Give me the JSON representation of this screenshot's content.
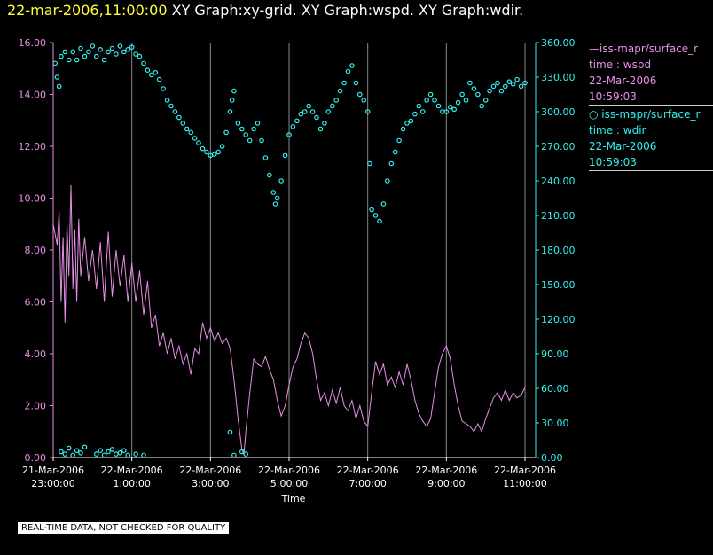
{
  "title": {
    "timestamp": "22-mar-2006,11:00:00",
    "graphs": "XY Graph:xy-grid.  XY Graph:wspd.  XY Graph:wdir."
  },
  "legend": {
    "wspd": {
      "series": "iss-mapr/surface_r",
      "var": "time : wspd",
      "date": "22-Mar-2006",
      "time": "10:59:03"
    },
    "wdir": {
      "series": "iss-mapr/surface_r",
      "var": "time : wdir",
      "date": "22-Mar-2006",
      "time": "10:59:03"
    }
  },
  "disclaimer": "REAL-TIME DATA, NOT CHECKED FOR QUALITY",
  "colors": {
    "wspd": "#e88ee8",
    "wdir": "#33f0f0",
    "grid": "#888888",
    "axis": "#ffffff",
    "title_time": "#ffff33"
  },
  "chart_data": {
    "type": "line+scatter",
    "xlabel": "Time",
    "x_unit": "hours since 21-Mar-2006 23:00:00",
    "xlim": [
      0,
      12
    ],
    "x_ticks": [
      {
        "x": 0,
        "line1": "21-Mar-2006",
        "line2": "23:00:00"
      },
      {
        "x": 2,
        "line1": "22-Mar-2006",
        "line2": "1:00:00"
      },
      {
        "x": 4,
        "line1": "22-Mar-2006",
        "line2": "3:00:00"
      },
      {
        "x": 6,
        "line1": "22-Mar-2006",
        "line2": "5:00:00"
      },
      {
        "x": 8,
        "line1": "22-Mar-2006",
        "line2": "7:00:00"
      },
      {
        "x": 10,
        "line1": "22-Mar-2006",
        "line2": "9:00:00"
      },
      {
        "x": 12,
        "line1": "22-Mar-2006",
        "line2": "11:00:00"
      }
    ],
    "y_left": {
      "ylim": [
        0,
        16
      ],
      "ticks": [
        "0.00",
        "2.00",
        "4.00",
        "6.00",
        "8.00",
        "10.00",
        "12.00",
        "14.00",
        "16.00"
      ]
    },
    "y_right": {
      "ylim": [
        0,
        360
      ],
      "ticks": [
        "0.00",
        "30.00",
        "60.00",
        "90.00",
        "120.00",
        "150.00",
        "180.00",
        "210.00",
        "240.00",
        "270.00",
        "300.00",
        "330.00",
        "360.00"
      ]
    },
    "series": [
      {
        "name": "wspd",
        "axis": "left",
        "style": "line",
        "points": [
          [
            0,
            9.0
          ],
          [
            0.1,
            8.2
          ],
          [
            0.15,
            9.5
          ],
          [
            0.2,
            6.0
          ],
          [
            0.25,
            8.5
          ],
          [
            0.3,
            5.2
          ],
          [
            0.35,
            9.0
          ],
          [
            0.4,
            7.0
          ],
          [
            0.45,
            10.5
          ],
          [
            0.5,
            6.5
          ],
          [
            0.55,
            8.8
          ],
          [
            0.6,
            6.0
          ],
          [
            0.65,
            9.2
          ],
          [
            0.7,
            7.0
          ],
          [
            0.8,
            8.5
          ],
          [
            0.9,
            6.8
          ],
          [
            1.0,
            8.0
          ],
          [
            1.1,
            6.5
          ],
          [
            1.2,
            8.3
          ],
          [
            1.3,
            6.0
          ],
          [
            1.4,
            8.7
          ],
          [
            1.5,
            6.2
          ],
          [
            1.6,
            8.0
          ],
          [
            1.7,
            6.6
          ],
          [
            1.8,
            7.8
          ],
          [
            1.9,
            6.0
          ],
          [
            2.0,
            7.5
          ],
          [
            2.1,
            6.0
          ],
          [
            2.2,
            7.2
          ],
          [
            2.3,
            5.5
          ],
          [
            2.4,
            6.8
          ],
          [
            2.5,
            5.0
          ],
          [
            2.6,
            5.5
          ],
          [
            2.7,
            4.3
          ],
          [
            2.8,
            4.8
          ],
          [
            2.9,
            4.0
          ],
          [
            3.0,
            4.6
          ],
          [
            3.1,
            3.8
          ],
          [
            3.2,
            4.3
          ],
          [
            3.3,
            3.6
          ],
          [
            3.4,
            4.0
          ],
          [
            3.5,
            3.2
          ],
          [
            3.6,
            4.2
          ],
          [
            3.7,
            4.0
          ],
          [
            3.8,
            5.2
          ],
          [
            3.9,
            4.6
          ],
          [
            4.0,
            5.0
          ],
          [
            4.1,
            4.5
          ],
          [
            4.2,
            4.8
          ],
          [
            4.3,
            4.4
          ],
          [
            4.4,
            4.6
          ],
          [
            4.5,
            4.2
          ],
          [
            4.6,
            3.0
          ],
          [
            4.7,
            1.5
          ],
          [
            4.8,
            0.3
          ],
          [
            4.85,
            0.1
          ],
          [
            4.9,
            1.0
          ],
          [
            5.0,
            2.5
          ],
          [
            5.1,
            3.8
          ],
          [
            5.2,
            3.6
          ],
          [
            5.3,
            3.5
          ],
          [
            5.4,
            3.9
          ],
          [
            5.5,
            3.4
          ],
          [
            5.6,
            3.0
          ],
          [
            5.7,
            2.2
          ],
          [
            5.8,
            1.6
          ],
          [
            5.9,
            2.0
          ],
          [
            6.0,
            2.8
          ],
          [
            6.1,
            3.5
          ],
          [
            6.2,
            3.8
          ],
          [
            6.3,
            4.4
          ],
          [
            6.4,
            4.8
          ],
          [
            6.5,
            4.6
          ],
          [
            6.6,
            4.0
          ],
          [
            6.7,
            3.0
          ],
          [
            6.8,
            2.2
          ],
          [
            6.9,
            2.5
          ],
          [
            7.0,
            2.0
          ],
          [
            7.1,
            2.6
          ],
          [
            7.2,
            2.1
          ],
          [
            7.3,
            2.7
          ],
          [
            7.4,
            2.0
          ],
          [
            7.5,
            1.8
          ],
          [
            7.6,
            2.2
          ],
          [
            7.7,
            1.5
          ],
          [
            7.8,
            2.0
          ],
          [
            7.9,
            1.4
          ],
          [
            8.0,
            1.2
          ],
          [
            8.1,
            2.5
          ],
          [
            8.2,
            3.7
          ],
          [
            8.3,
            3.2
          ],
          [
            8.4,
            3.6
          ],
          [
            8.5,
            2.8
          ],
          [
            8.6,
            3.1
          ],
          [
            8.7,
            2.7
          ],
          [
            8.8,
            3.3
          ],
          [
            8.9,
            2.8
          ],
          [
            9.0,
            3.6
          ],
          [
            9.1,
            3.0
          ],
          [
            9.2,
            2.2
          ],
          [
            9.3,
            1.7
          ],
          [
            9.4,
            1.4
          ],
          [
            9.5,
            1.2
          ],
          [
            9.6,
            1.5
          ],
          [
            9.7,
            2.5
          ],
          [
            9.8,
            3.5
          ],
          [
            9.9,
            4.0
          ],
          [
            10.0,
            4.3
          ],
          [
            10.1,
            3.8
          ],
          [
            10.2,
            2.8
          ],
          [
            10.3,
            2.0
          ],
          [
            10.4,
            1.4
          ],
          [
            10.5,
            1.3
          ],
          [
            10.6,
            1.2
          ],
          [
            10.7,
            1.0
          ],
          [
            10.8,
            1.3
          ],
          [
            10.9,
            1.0
          ],
          [
            11.0,
            1.5
          ],
          [
            11.1,
            1.9
          ],
          [
            11.2,
            2.3
          ],
          [
            11.3,
            2.5
          ],
          [
            11.4,
            2.2
          ],
          [
            11.5,
            2.6
          ],
          [
            11.6,
            2.2
          ],
          [
            11.7,
            2.5
          ],
          [
            11.8,
            2.3
          ],
          [
            11.9,
            2.4
          ],
          [
            12.0,
            2.7
          ]
        ]
      },
      {
        "name": "wdir",
        "axis": "right",
        "style": "markers",
        "points": [
          [
            0.05,
            342
          ],
          [
            0.1,
            330
          ],
          [
            0.15,
            322
          ],
          [
            0.2,
            348
          ],
          [
            0.3,
            352
          ],
          [
            0.4,
            345
          ],
          [
            0.5,
            352
          ],
          [
            0.6,
            345
          ],
          [
            0.7,
            355
          ],
          [
            0.8,
            348
          ],
          [
            0.9,
            352
          ],
          [
            1.0,
            357
          ],
          [
            1.1,
            348
          ],
          [
            1.2,
            354
          ],
          [
            1.3,
            345
          ],
          [
            1.4,
            352
          ],
          [
            1.5,
            355
          ],
          [
            1.6,
            350
          ],
          [
            1.7,
            357
          ],
          [
            1.8,
            352
          ],
          [
            1.9,
            354
          ],
          [
            2.0,
            356
          ],
          [
            2.1,
            350
          ],
          [
            2.2,
            348
          ],
          [
            2.3,
            342
          ],
          [
            2.4,
            336
          ],
          [
            2.5,
            332
          ],
          [
            2.6,
            334
          ],
          [
            2.7,
            328
          ],
          [
            2.8,
            320
          ],
          [
            2.9,
            310
          ],
          [
            3.0,
            305
          ],
          [
            3.1,
            300
          ],
          [
            3.2,
            295
          ],
          [
            3.3,
            290
          ],
          [
            3.4,
            285
          ],
          [
            3.5,
            282
          ],
          [
            3.6,
            277
          ],
          [
            3.7,
            273
          ],
          [
            3.8,
            268
          ],
          [
            3.9,
            265
          ],
          [
            4.0,
            262
          ],
          [
            4.1,
            263
          ],
          [
            4.2,
            265
          ],
          [
            4.3,
            270
          ],
          [
            4.4,
            282
          ],
          [
            4.5,
            300
          ],
          [
            4.55,
            310
          ],
          [
            4.6,
            318
          ],
          [
            4.7,
            290
          ],
          [
            4.8,
            285
          ],
          [
            4.9,
            280
          ],
          [
            5.0,
            275
          ],
          [
            5.1,
            285
          ],
          [
            5.2,
            290
          ],
          [
            5.3,
            275
          ],
          [
            5.4,
            260
          ],
          [
            5.5,
            245
          ],
          [
            5.6,
            230
          ],
          [
            5.65,
            220
          ],
          [
            5.7,
            225
          ],
          [
            5.8,
            240
          ],
          [
            5.9,
            262
          ],
          [
            6.0,
            280
          ],
          [
            6.1,
            287
          ],
          [
            6.2,
            292
          ],
          [
            6.3,
            298
          ],
          [
            6.4,
            300
          ],
          [
            6.5,
            305
          ],
          [
            6.6,
            300
          ],
          [
            6.7,
            295
          ],
          [
            6.8,
            285
          ],
          [
            6.9,
            290
          ],
          [
            7.0,
            300
          ],
          [
            7.1,
            305
          ],
          [
            7.2,
            310
          ],
          [
            7.3,
            318
          ],
          [
            7.4,
            325
          ],
          [
            7.5,
            335
          ],
          [
            7.6,
            340
          ],
          [
            7.7,
            325
          ],
          [
            7.8,
            315
          ],
          [
            7.9,
            310
          ],
          [
            8.0,
            300
          ],
          [
            8.05,
            255
          ],
          [
            8.1,
            215
          ],
          [
            8.2,
            210
          ],
          [
            8.3,
            205
          ],
          [
            8.4,
            220
          ],
          [
            8.5,
            240
          ],
          [
            8.6,
            255
          ],
          [
            8.7,
            265
          ],
          [
            8.8,
            275
          ],
          [
            8.9,
            285
          ],
          [
            9.0,
            290
          ],
          [
            9.1,
            292
          ],
          [
            9.2,
            298
          ],
          [
            9.3,
            305
          ],
          [
            9.4,
            300
          ],
          [
            9.5,
            310
          ],
          [
            9.6,
            315
          ],
          [
            9.7,
            310
          ],
          [
            9.8,
            305
          ],
          [
            9.9,
            300
          ],
          [
            10.0,
            300
          ],
          [
            10.1,
            304
          ],
          [
            10.2,
            302
          ],
          [
            10.3,
            308
          ],
          [
            10.4,
            315
          ],
          [
            10.5,
            310
          ],
          [
            10.6,
            325
          ],
          [
            10.7,
            320
          ],
          [
            10.8,
            315
          ],
          [
            10.9,
            305
          ],
          [
            11.0,
            310
          ],
          [
            11.1,
            318
          ],
          [
            11.2,
            322
          ],
          [
            11.3,
            325
          ],
          [
            11.4,
            318
          ],
          [
            11.5,
            322
          ],
          [
            11.6,
            326
          ],
          [
            11.7,
            324
          ],
          [
            11.8,
            328
          ],
          [
            11.9,
            322
          ],
          [
            12.0,
            325
          ],
          [
            0.2,
            5
          ],
          [
            0.3,
            3
          ],
          [
            0.4,
            8
          ],
          [
            0.5,
            2
          ],
          [
            0.6,
            6
          ],
          [
            0.7,
            4
          ],
          [
            0.8,
            9
          ],
          [
            1.1,
            3
          ],
          [
            1.2,
            6
          ],
          [
            1.3,
            2
          ],
          [
            1.4,
            5
          ],
          [
            1.5,
            7
          ],
          [
            1.6,
            3
          ],
          [
            1.7,
            4
          ],
          [
            1.8,
            6
          ],
          [
            1.9,
            2
          ],
          [
            2.1,
            3
          ],
          [
            2.3,
            2
          ],
          [
            4.5,
            22
          ],
          [
            4.6,
            2
          ],
          [
            4.8,
            5
          ],
          [
            4.9,
            3
          ]
        ]
      }
    ]
  }
}
